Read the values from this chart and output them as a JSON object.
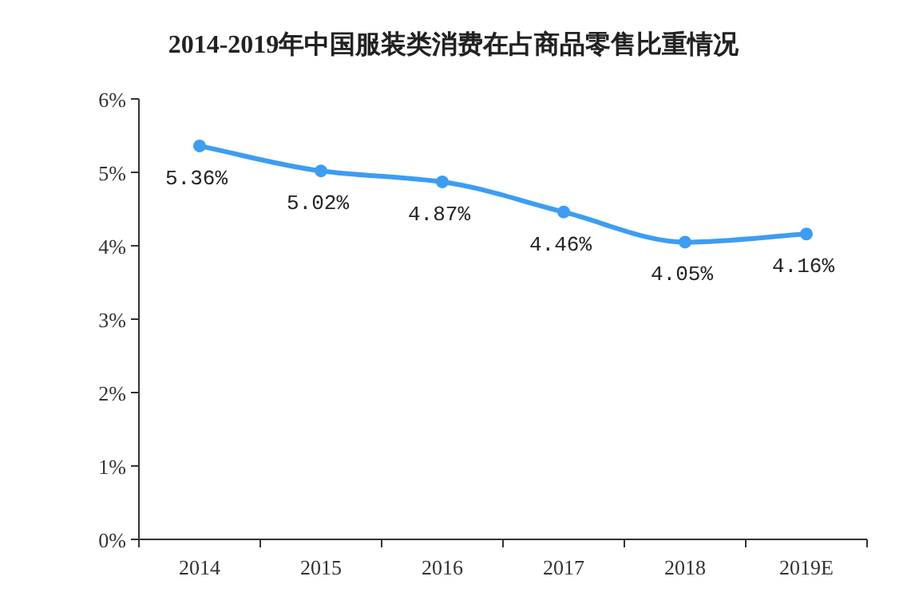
{
  "chart_data": {
    "type": "line",
    "title": "2014-2019年中国服装类消费在占商品零售比重情况",
    "categories": [
      "2014",
      "2015",
      "2016",
      "2017",
      "2018",
      "2019E"
    ],
    "series": [
      {
        "color": "#3d9df2",
        "values": [
          5.36,
          5.02,
          4.87,
          4.46,
          4.05,
          4.16
        ],
        "value_labels": [
          "5.36%",
          "5.02%",
          "4.87%",
          "4.46%",
          "4.05%",
          "4.16%"
        ]
      }
    ],
    "ylim": [
      0,
      6
    ],
    "yticks": [
      {
        "value": 0,
        "label": "0%"
      },
      {
        "value": 1,
        "label": "1%"
      },
      {
        "value": 2,
        "label": "2%"
      },
      {
        "value": 3,
        "label": "3%"
      },
      {
        "value": 4,
        "label": "4%"
      },
      {
        "value": 5,
        "label": "5%"
      },
      {
        "value": 6,
        "label": "6%"
      }
    ],
    "grid": false,
    "marker": "circle",
    "line_style": "solid"
  }
}
